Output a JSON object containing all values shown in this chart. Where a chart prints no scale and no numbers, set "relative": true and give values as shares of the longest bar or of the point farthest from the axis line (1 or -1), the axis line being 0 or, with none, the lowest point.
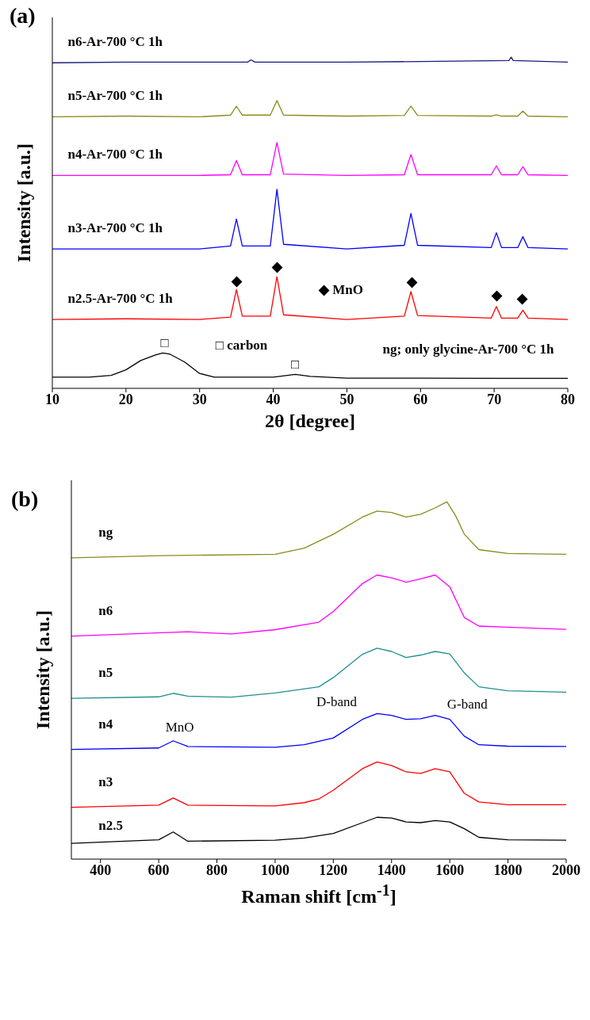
{
  "chart_data": [
    {
      "type": "line",
      "title": "(a)",
      "xlabel": "2θ [degree]",
      "ylabel": "Intensity [a.u.]",
      "relative": true,
      "marker": "none",
      "line_style": "solid",
      "xlim": [
        10,
        80
      ],
      "xticks": [
        10,
        20,
        30,
        40,
        50,
        60,
        70,
        80
      ],
      "series": [
        {
          "name": "ng; only glycine-Ar-700 °C 1h",
          "color": "#000000",
          "x": [
            10,
            15,
            18,
            20,
            22,
            24,
            25,
            26,
            28,
            30,
            32,
            40,
            43,
            45,
            50,
            60,
            70,
            80
          ],
          "values": [
            0.034,
            0.034,
            0.039,
            0.056,
            0.084,
            0.101,
            0.107,
            0.103,
            0.079,
            0.045,
            0.034,
            0.034,
            0.042,
            0.036,
            0.031,
            0.031,
            0.03,
            0.03
          ]
        },
        {
          "name": "n2.5-Ar-700 °C 1h",
          "color": "#ff0000",
          "x": [
            10,
            20,
            30,
            34.2,
            35,
            35.8,
            39.6,
            40.5,
            41.4,
            50,
            57.8,
            58.7,
            59.6,
            69.6,
            70.3,
            71,
            73.2,
            73.9,
            74.6,
            80
          ],
          "values": [
            0.208,
            0.21,
            0.208,
            0.215,
            0.298,
            0.218,
            0.218,
            0.337,
            0.222,
            0.208,
            0.218,
            0.292,
            0.22,
            0.212,
            0.247,
            0.212,
            0.212,
            0.236,
            0.212,
            0.208
          ]
        },
        {
          "name": "n3-Ar-700 °C 1h",
          "color": "#0000ff",
          "x": [
            10,
            20,
            30,
            34.2,
            35,
            35.8,
            39.6,
            40.5,
            41.4,
            50,
            57.8,
            58.7,
            59.6,
            69.6,
            70.3,
            71,
            73.2,
            73.9,
            74.6,
            80
          ],
          "values": [
            0.421,
            0.421,
            0.421,
            0.43,
            0.511,
            0.43,
            0.43,
            0.601,
            0.435,
            0.421,
            0.432,
            0.528,
            0.432,
            0.425,
            0.47,
            0.425,
            0.425,
            0.458,
            0.425,
            0.421
          ]
        },
        {
          "name": "n4-Ar-700 °C 1h",
          "color": "#ff00ff",
          "x": [
            10,
            20,
            30,
            34.2,
            35,
            35.8,
            39.6,
            40.5,
            41.4,
            50,
            57.8,
            58.7,
            59.6,
            69.6,
            70.3,
            71,
            73.2,
            73.9,
            74.6,
            80
          ],
          "values": [
            0.643,
            0.643,
            0.643,
            0.645,
            0.688,
            0.645,
            0.645,
            0.742,
            0.647,
            0.643,
            0.645,
            0.706,
            0.645,
            0.645,
            0.672,
            0.645,
            0.645,
            0.669,
            0.645,
            0.643
          ]
        },
        {
          "name": "n5-Ar-700 °C 1h",
          "color": "#8b8b1e",
          "x": [
            10,
            20,
            30,
            34.2,
            35,
            35.8,
            39.6,
            40.5,
            41.4,
            50,
            57.8,
            58.7,
            59.6,
            69.6,
            70.3,
            71,
            73.2,
            73.9,
            74.6,
            80
          ],
          "values": [
            0.82,
            0.822,
            0.82,
            0.825,
            0.852,
            0.825,
            0.825,
            0.869,
            0.825,
            0.822,
            0.824,
            0.852,
            0.824,
            0.822,
            0.826,
            0.822,
            0.822,
            0.837,
            0.822,
            0.82
          ]
        },
        {
          "name": "n6-Ar-700 °C 1h",
          "color": "#1a1a80",
          "x": [
            10,
            20,
            30,
            36.5,
            37,
            37.5,
            50,
            60,
            72,
            72.3,
            72.6,
            80
          ],
          "values": [
            0.983,
            0.985,
            0.985,
            0.985,
            0.992,
            0.985,
            0.985,
            0.987,
            0.99,
            1.0,
            0.99,
            0.985
          ]
        }
      ],
      "annotations": [
        "◆",
        "◆",
        "◆",
        "◆",
        "◆",
        "□",
        "□",
        "□ carbon",
        "◆ MnO"
      ]
    },
    {
      "type": "line",
      "title": "(b)",
      "xlabel": "Raman shift [cm$^{-1}$]",
      "ylabel": "Intensity [a.u.]",
      "relative": true,
      "marker": "none",
      "line_style": "solid",
      "xlim": [
        300,
        2000
      ],
      "xticks": [
        400,
        600,
        800,
        1000,
        1200,
        1400,
        1600,
        1800,
        2000
      ],
      "series": [
        {
          "name": "n2.5",
          "color": "#000000",
          "x": [
            300,
            600,
            650,
            700,
            1000,
            1100,
            1200,
            1300,
            1350,
            1400,
            1450,
            1500,
            1550,
            1600,
            1650,
            1700,
            1800,
            2000
          ],
          "values": [
            0.044,
            0.054,
            0.076,
            0.05,
            0.053,
            0.059,
            0.072,
            0.102,
            0.117,
            0.115,
            0.104,
            0.102,
            0.108,
            0.104,
            0.085,
            0.061,
            0.054,
            0.053
          ]
        },
        {
          "name": "n3",
          "color": "#ff0000",
          "x": [
            300,
            600,
            650,
            700,
            1000,
            1100,
            1150,
            1200,
            1300,
            1350,
            1400,
            1450,
            1500,
            1550,
            1600,
            1650,
            1700,
            1800,
            2000
          ],
          "values": [
            0.145,
            0.151,
            0.171,
            0.151,
            0.149,
            0.158,
            0.168,
            0.193,
            0.253,
            0.272,
            0.262,
            0.244,
            0.24,
            0.253,
            0.244,
            0.184,
            0.16,
            0.152,
            0.152
          ]
        },
        {
          "name": "n4",
          "color": "#0000ff",
          "x": [
            300,
            600,
            650,
            700,
            1000,
            1100,
            1200,
            1300,
            1350,
            1400,
            1450,
            1500,
            1550,
            1600,
            1650,
            1700,
            1800,
            2000
          ],
          "values": [
            0.307,
            0.311,
            0.331,
            0.315,
            0.313,
            0.32,
            0.339,
            0.391,
            0.407,
            0.402,
            0.391,
            0.393,
            0.402,
            0.391,
            0.344,
            0.32,
            0.316,
            0.315
          ]
        },
        {
          "name": "n5",
          "color": "#1f8f8f",
          "x": [
            300,
            600,
            650,
            700,
            850,
            1000,
            1150,
            1200,
            1300,
            1350,
            1400,
            1450,
            1500,
            1550,
            1600,
            1650,
            1700,
            1800,
            2000
          ],
          "values": [
            0.45,
            0.454,
            0.464,
            0.456,
            0.453,
            0.465,
            0.482,
            0.508,
            0.573,
            0.59,
            0.581,
            0.564,
            0.571,
            0.581,
            0.574,
            0.521,
            0.482,
            0.471,
            0.467
          ]
        },
        {
          "name": "n6",
          "color": "#ff00ff",
          "x": [
            300,
            500,
            700,
            850,
            1000,
            1150,
            1200,
            1300,
            1350,
            1400,
            1450,
            1500,
            1550,
            1600,
            1650,
            1700,
            1800,
            2000
          ],
          "values": [
            0.624,
            0.63,
            0.636,
            0.63,
            0.642,
            0.663,
            0.693,
            0.771,
            0.795,
            0.787,
            0.775,
            0.784,
            0.795,
            0.762,
            0.676,
            0.652,
            0.649,
            0.643
          ]
        },
        {
          "name": "ng",
          "color": "#8b8b1e",
          "x": [
            300,
            600,
            1000,
            1100,
            1200,
            1300,
            1350,
            1400,
            1450,
            1500,
            1550,
            1590,
            1620,
            1650,
            1700,
            1800,
            2000
          ],
          "values": [
            0.843,
            0.849,
            0.853,
            0.87,
            0.909,
            0.957,
            0.974,
            0.97,
            0.957,
            0.965,
            0.983,
            1.0,
            0.961,
            0.909,
            0.866,
            0.855,
            0.853
          ]
        }
      ],
      "annotations": [
        "MnO",
        "D-band",
        "G-band"
      ]
    }
  ]
}
